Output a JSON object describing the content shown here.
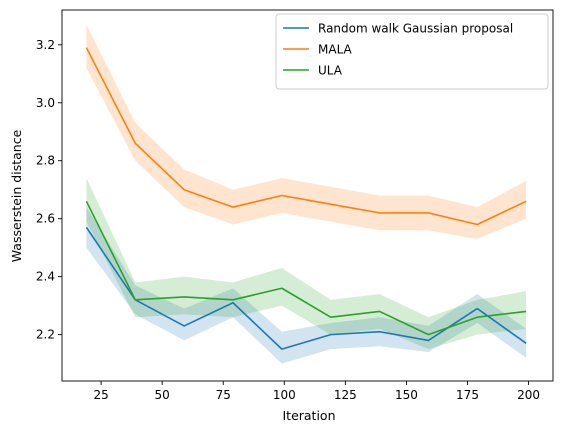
{
  "chart_data": {
    "type": "line",
    "xlabel": "Iteration",
    "ylabel": "Wasserstein distance",
    "xlim": [
      9,
      210
    ],
    "ylim": [
      2.04,
      3.32
    ],
    "xticks": [
      25,
      50,
      75,
      100,
      125,
      150,
      175,
      200
    ],
    "xtick_labels": [
      "25",
      "50",
      "75",
      "100",
      "125",
      "150",
      "175",
      "200"
    ],
    "yticks": [
      2.2,
      2.4,
      2.6,
      2.8,
      3.0,
      3.2
    ],
    "ytick_labels": [
      "2.2",
      "2.4",
      "2.6",
      "2.8",
      "3.0",
      "3.2"
    ],
    "legend_position": "top-right",
    "grid": false,
    "x": [
      19,
      39,
      59,
      79,
      99,
      119,
      139,
      159,
      179,
      199
    ],
    "series": [
      {
        "name": "Random walk Gaussian proposal",
        "color": "#1f77b4",
        "values": [
          2.57,
          2.32,
          2.23,
          2.31,
          2.15,
          2.2,
          2.21,
          2.18,
          2.29,
          2.17
        ],
        "lower": [
          2.5,
          2.27,
          2.18,
          2.26,
          2.1,
          2.15,
          2.16,
          2.14,
          2.24,
          2.12
        ],
        "upper": [
          2.64,
          2.37,
          2.29,
          2.36,
          2.21,
          2.24,
          2.26,
          2.23,
          2.34,
          2.22
        ]
      },
      {
        "name": "MALA",
        "color": "#ff7f0e",
        "values": [
          3.19,
          2.86,
          2.7,
          2.64,
          2.68,
          2.65,
          2.62,
          2.62,
          2.58,
          2.66
        ],
        "lower": [
          3.12,
          2.8,
          2.64,
          2.58,
          2.62,
          2.59,
          2.56,
          2.56,
          2.53,
          2.6
        ],
        "upper": [
          3.27,
          2.93,
          2.77,
          2.7,
          2.74,
          2.71,
          2.68,
          2.68,
          2.64,
          2.73
        ]
      },
      {
        "name": "ULA",
        "color": "#2ca02c",
        "values": [
          2.66,
          2.32,
          2.33,
          2.32,
          2.36,
          2.26,
          2.28,
          2.2,
          2.26,
          2.28
        ],
        "lower": [
          2.59,
          2.26,
          2.27,
          2.26,
          2.3,
          2.2,
          2.22,
          2.15,
          2.2,
          2.22
        ],
        "upper": [
          2.74,
          2.38,
          2.4,
          2.38,
          2.43,
          2.32,
          2.34,
          2.26,
          2.32,
          2.35
        ]
      }
    ]
  }
}
